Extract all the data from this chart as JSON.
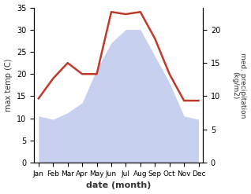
{
  "months": [
    "Jan",
    "Feb",
    "Mar",
    "Apr",
    "May",
    "Jun",
    "Jul",
    "Aug",
    "Sep",
    "Oct",
    "Nov",
    "Dec"
  ],
  "temperature": [
    14.5,
    19.0,
    22.5,
    20.0,
    20.0,
    34.0,
    33.5,
    34.0,
    28.0,
    20.0,
    14.0,
    14.0
  ],
  "precipitation": [
    7.0,
    6.5,
    7.5,
    9.0,
    14.0,
    18.0,
    20.0,
    20.0,
    16.0,
    12.0,
    7.0,
    6.5
  ],
  "temp_color": "#c0392b",
  "precip_fill_color": "#c8d0f0",
  "ylabel_left": "max temp (C)",
  "ylabel_right": "med. precipitation\n(kg/m2)",
  "xlabel": "date (month)",
  "ylim_left": [
    0,
    35
  ],
  "ylim_right": [
    0,
    23.3
  ],
  "yticks_left": [
    0,
    5,
    10,
    15,
    20,
    25,
    30,
    35
  ],
  "yticks_right": [
    0,
    5,
    10,
    15,
    20
  ],
  "background_color": "#ffffff"
}
